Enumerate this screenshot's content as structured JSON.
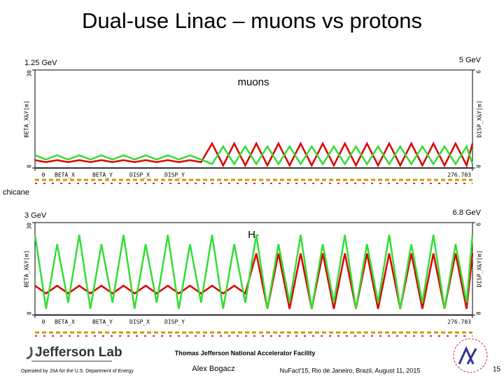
{
  "title": "Dual-use Linac – muons vs protons",
  "section_label": "chicane",
  "footer": {
    "lab": "Jefferson Lab",
    "facility": "Thomas Jefferson National Accelerator Facility",
    "operated": "Operated by JSA for the U.S. Department of Energy",
    "author": "Alex Bogacz",
    "conference": "NuFact'15, Rio de Janeiro, Brazil, August 11, 2015",
    "page": "15"
  },
  "chart_data": [
    {
      "type": "line",
      "annotation": "muons",
      "energy_left": "1.25 GeV",
      "energy_right": "5 GeV",
      "y_label": "BETA_X&Y[m]",
      "y2_label": "DISP_X&Y[m]",
      "xlim": [
        0,
        276.703
      ],
      "xticks": [
        0,
        276.703
      ],
      "ylim": [
        0,
        30
      ],
      "yticks": [
        0,
        30
      ],
      "y2lim": [
        0,
        6
      ],
      "y2ticks": [
        0,
        6
      ],
      "x": [
        0,
        7,
        14,
        21,
        28,
        35,
        42,
        49,
        56,
        63,
        70,
        77,
        84,
        91,
        98,
        105,
        112,
        119,
        126,
        133,
        140,
        147,
        154,
        161,
        168,
        175,
        182,
        189,
        196,
        203,
        210,
        217,
        224,
        231,
        238,
        245,
        252,
        259,
        266,
        273,
        276.703
      ],
      "series": [
        {
          "name": "BETA_X",
          "color": "#dd0000",
          "values": [
            2.4,
            1.8,
            2.4,
            1.8,
            2.4,
            1.8,
            2.4,
            1.8,
            2.4,
            1.8,
            2.4,
            1.8,
            2.4,
            1.8,
            2.4,
            1.8,
            7.5,
            0.8,
            7.5,
            0.8,
            7.5,
            0.8,
            7.5,
            0.8,
            7.5,
            0.8,
            7.5,
            0.8,
            7.5,
            0.8,
            7.5,
            0.8,
            7.5,
            0.8,
            7.5,
            0.8,
            7.5,
            0.8,
            7.5,
            0.8,
            7.5
          ]
        },
        {
          "name": "BETA_Y",
          "color": "#33dd33",
          "values": [
            3.9,
            2.6,
            3.9,
            2.6,
            3.9,
            2.6,
            3.9,
            2.6,
            3.9,
            2.6,
            3.9,
            2.6,
            3.9,
            2.6,
            3.9,
            2.6,
            1.2,
            6.6,
            1.2,
            6.6,
            1.2,
            6.6,
            1.2,
            6.6,
            1.2,
            6.6,
            1.2,
            6.6,
            1.2,
            6.6,
            1.2,
            6.6,
            1.2,
            6.6,
            1.2,
            6.6,
            1.2,
            6.6,
            1.2,
            6.6,
            1.2
          ]
        },
        {
          "name": "DISP_X",
          "color": "#0000cc",
          "axis": "y2",
          "values": [
            0,
            0,
            0,
            0,
            0,
            0,
            0,
            0,
            0,
            0,
            0,
            0,
            0,
            0,
            0,
            0,
            0,
            0,
            0,
            0,
            0,
            0,
            0,
            0,
            0,
            0,
            0,
            0,
            0,
            0,
            0,
            0,
            0,
            0,
            0,
            0,
            0,
            0,
            0,
            0,
            0
          ]
        },
        {
          "name": "DISP_Y",
          "color": "#333333",
          "axis": "y2",
          "values": [
            0,
            0,
            0,
            0,
            0,
            0,
            0,
            0,
            0,
            0,
            0,
            0,
            0,
            0,
            0,
            0,
            0,
            0,
            0,
            0,
            0,
            0,
            0,
            0,
            0,
            0,
            0,
            0,
            0,
            0,
            0,
            0,
            0,
            0,
            0,
            0,
            0,
            0,
            0,
            0,
            0
          ]
        }
      ]
    },
    {
      "type": "line",
      "annotation": "H-",
      "energy_left": "3 GeV",
      "energy_right": "6.8 GeV",
      "y_label": "BETA_X&Y[m]",
      "y2_label": "DISP_X&Y[m]",
      "xlim": [
        0,
        276.703
      ],
      "xticks": [
        0,
        276.703
      ],
      "ylim": [
        0,
        30
      ],
      "yticks": [
        0,
        30
      ],
      "y2lim": [
        0,
        6
      ],
      "y2ticks": [
        0,
        6
      ],
      "x": [
        0,
        7,
        14,
        21,
        28,
        35,
        42,
        49,
        56,
        63,
        70,
        77,
        84,
        91,
        98,
        105,
        112,
        119,
        126,
        133,
        140,
        147,
        154,
        161,
        168,
        175,
        182,
        189,
        196,
        203,
        210,
        217,
        224,
        231,
        238,
        245,
        252,
        259,
        266,
        273,
        276.703
      ],
      "series": [
        {
          "name": "BETA_X",
          "color": "#dd0000",
          "values": [
            9.5,
            7,
            9.5,
            7,
            9.5,
            7,
            9.5,
            7,
            9.5,
            7,
            9.5,
            7,
            9.5,
            7,
            9.5,
            7,
            9.5,
            7,
            9.5,
            7,
            20,
            2,
            20,
            2,
            20,
            2,
            20,
            2,
            20,
            2,
            20,
            2,
            20,
            2,
            20,
            2,
            20,
            2,
            20,
            2,
            20
          ]
        },
        {
          "name": "BETA_Y",
          "color": "#33dd33",
          "values": [
            26,
            2,
            23,
            4,
            26,
            2,
            23,
            4,
            26,
            2,
            23,
            4,
            26,
            2,
            23,
            4,
            26,
            2,
            23,
            4,
            26,
            2,
            23,
            4,
            26,
            2,
            23,
            4,
            26,
            2,
            23,
            4,
            26,
            2,
            23,
            4,
            26,
            2,
            23,
            4,
            26
          ]
        },
        {
          "name": "DISP_X",
          "color": "#0000cc",
          "axis": "y2",
          "values": [
            0,
            0,
            0,
            0,
            0,
            0,
            0,
            0,
            0,
            0,
            0,
            0,
            0,
            0,
            0,
            0,
            0,
            0,
            0,
            0,
            0,
            0,
            0,
            0,
            0,
            0,
            0,
            0,
            0,
            0,
            0,
            0,
            0,
            0,
            0,
            0,
            0,
            0,
            0,
            0,
            0
          ]
        },
        {
          "name": "DISP_Y",
          "color": "#333333",
          "axis": "y2",
          "values": [
            0,
            0,
            0,
            0,
            0,
            0,
            0,
            0,
            0,
            0,
            0,
            0,
            0,
            0,
            0,
            0,
            0,
            0,
            0,
            0,
            0,
            0,
            0,
            0,
            0,
            0,
            0,
            0,
            0,
            0,
            0,
            0,
            0,
            0,
            0,
            0,
            0,
            0,
            0,
            0,
            0
          ]
        }
      ]
    }
  ]
}
